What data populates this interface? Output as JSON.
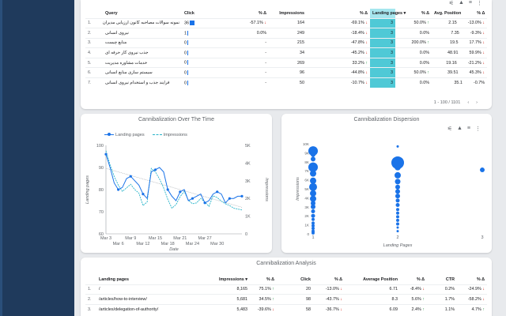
{
  "top_table": {
    "headers": [
      "Query",
      "Click",
      "% Δ",
      "Impressions",
      "% Δ",
      "Landing pages",
      "% Δ",
      "Avg. Position",
      "% Δ"
    ],
    "sort_icon": "triangle-down-icon",
    "rows": [
      {
        "n": "1.",
        "q": "نمونه سوالات مصاحبه کانون ارزیابی مدیران",
        "c": "36",
        "cd": "-57.1%",
        "cdd": "dn",
        "i": "164",
        "id": "-69.1%",
        "idd": "dn",
        "lp": "3",
        "lpd": "50.0%",
        "lpdd": "up",
        "ap": "2.15",
        "apd": "-13.0%",
        "apdd": "dn"
      },
      {
        "n": "2.",
        "q": "نیروی انسانی",
        "c": "1",
        "cd": "0.0%",
        "cdd": "",
        "i": "249",
        "id": "-18.4%",
        "idd": "dn",
        "lp": "3",
        "lpd": "0.0%",
        "lpdd": "",
        "ap": "7.35",
        "apd": "-9.3%",
        "apdd": "dn"
      },
      {
        "n": "3.",
        "q": "منابع چیست",
        "c": "0",
        "cd": "-",
        "cdd": "",
        "i": "215",
        "id": "-47.8%",
        "idd": "dn",
        "lp": "3",
        "lpd": "200.0%",
        "lpdd": "up",
        "ap": "19.5",
        "apd": "17.7%",
        "apdd": "dn"
      },
      {
        "n": "4.",
        "q": "جذب نیروی کار حرفه ای",
        "c": "0",
        "cd": "-",
        "cdd": "",
        "i": "34",
        "id": "-45.2%",
        "idd": "dn",
        "lp": "3",
        "lpd": "0.0%",
        "lpdd": "",
        "ap": "48.91",
        "apd": "59.9%",
        "apdd": "dn"
      },
      {
        "n": "5.",
        "q": "خدمات مشاوره مدیریت",
        "c": "0",
        "cd": "-",
        "cdd": "",
        "i": "269",
        "id": "33.2%",
        "idd": "up",
        "lp": "3",
        "lpd": "0.0%",
        "lpdd": "",
        "ap": "19.16",
        "apd": "-21.2%",
        "apdd": "dn"
      },
      {
        "n": "6.",
        "q": "سیستم سازی منابع انسانی",
        "c": "0",
        "cd": "-",
        "cdd": "",
        "i": "96",
        "id": "-44.8%",
        "idd": "dn",
        "lp": "3",
        "lpd": "50.0%",
        "lpdd": "up",
        "ap": "39.51",
        "apd": "45.3%",
        "apdd": "dn"
      },
      {
        "n": "7.",
        "q": "فرایند جذب و استخدام نیروی انسانی",
        "c": "0",
        "cd": "-",
        "cdd": "",
        "i": "50",
        "id": "-10.7%",
        "idd": "dn",
        "lp": "3",
        "lpd": "0.0%",
        "lpdd": "",
        "ap": "35.1",
        "apd": "-0.7%",
        "apdd": ""
      }
    ],
    "pager": "1 - 100 / 1101"
  },
  "chart1": {
    "title": "Cannibalization Over The Time",
    "legend": [
      "Landing pages",
      "Impressions"
    ]
  },
  "chart2": {
    "title": "Cannibalization Dispersion"
  },
  "chart_data": [
    {
      "type": "line",
      "title": "Cannibalization Over The Time",
      "xlabel": "Date",
      "ylabel": "Landing pages",
      "y2label": "Impressions",
      "x_ticks_top": [
        "Mar 3",
        "Mar 9",
        "Mar 15",
        "Mar 21",
        "Mar 27"
      ],
      "x_ticks_bottom": [
        "Mar 6",
        "Mar 12",
        "Mar 18",
        "Mar 24",
        "Mar 30"
      ],
      "ylim": [
        60,
        100
      ],
      "y_ticks": [
        60,
        70,
        80,
        90,
        100
      ],
      "y2lim": [
        0,
        5000
      ],
      "y2_ticks": [
        "0",
        "1K",
        "2K",
        "3K",
        "4K",
        "5K"
      ],
      "series": [
        {
          "name": "Landing pages",
          "axis": "left",
          "values": [
            96,
            90,
            83,
            80,
            81,
            85,
            86,
            84,
            82,
            78,
            76,
            88,
            89,
            90,
            88,
            80,
            77,
            75,
            79,
            80,
            75,
            76,
            77,
            78,
            74,
            75,
            78,
            79,
            78,
            74,
            76,
            76,
            77,
            77
          ]
        },
        {
          "name": "Impressions",
          "axis": "right",
          "values": [
            4700,
            3900,
            3250,
            2750,
            2400,
            2600,
            2800,
            2500,
            2300,
            1600,
            1800,
            3700,
            3500,
            3100,
            2600,
            1950,
            1450,
            1650,
            2100,
            2400,
            1900,
            1700,
            1750,
            2000,
            1800,
            1550,
            2150,
            2050,
            1850,
            1700,
            1600,
            1450,
            1400,
            1350
          ]
        }
      ]
    },
    {
      "type": "scatter",
      "title": "Cannibalization Dispersion",
      "xlabel": "Landing Pages",
      "ylabel": "Impressions",
      "x_ticks": [
        "1",
        "2",
        "3"
      ],
      "y_ticks": [
        "0",
        "1K",
        "2K",
        "3K",
        "4K",
        "5K",
        "6K",
        "7K",
        "8K",
        "9K",
        "10K"
      ],
      "ylim": [
        0,
        10000
      ],
      "points": [
        {
          "x": 1,
          "y": 9200,
          "s": 6
        },
        {
          "x": 1,
          "y": 8800,
          "s": 3
        },
        {
          "x": 1,
          "y": 8300,
          "s": 3
        },
        {
          "x": 1,
          "y": 7400,
          "s": 6
        },
        {
          "x": 1,
          "y": 6700,
          "s": 4
        },
        {
          "x": 1,
          "y": 5900,
          "s": 4
        },
        {
          "x": 1,
          "y": 5200,
          "s": 5
        },
        {
          "x": 1,
          "y": 4500,
          "s": 4
        },
        {
          "x": 1,
          "y": 3900,
          "s": 4
        },
        {
          "x": 1,
          "y": 3400,
          "s": 3
        },
        {
          "x": 1,
          "y": 3000,
          "s": 3
        },
        {
          "x": 1,
          "y": 2500,
          "s": 2.5
        },
        {
          "x": 1,
          "y": 2000,
          "s": 2.5
        },
        {
          "x": 1,
          "y": 1600,
          "s": 2
        },
        {
          "x": 1,
          "y": 1200,
          "s": 2
        },
        {
          "x": 1,
          "y": 900,
          "s": 2
        },
        {
          "x": 1,
          "y": 600,
          "s": 2
        },
        {
          "x": 1,
          "y": 300,
          "s": 2
        },
        {
          "x": 1,
          "y": 100,
          "s": 2
        },
        {
          "x": 2,
          "y": 9700,
          "s": 1.5
        },
        {
          "x": 2,
          "y": 7900,
          "s": 8
        },
        {
          "x": 2,
          "y": 7400,
          "s": 4
        },
        {
          "x": 2,
          "y": 6500,
          "s": 4
        },
        {
          "x": 2,
          "y": 5800,
          "s": 3.5
        },
        {
          "x": 2,
          "y": 5200,
          "s": 3
        },
        {
          "x": 2,
          "y": 4700,
          "s": 3
        },
        {
          "x": 2,
          "y": 4200,
          "s": 3
        },
        {
          "x": 2,
          "y": 3700,
          "s": 2.5
        },
        {
          "x": 2,
          "y": 3200,
          "s": 2.5
        },
        {
          "x": 2,
          "y": 2700,
          "s": 2
        },
        {
          "x": 2,
          "y": 2300,
          "s": 2
        },
        {
          "x": 2,
          "y": 1900,
          "s": 2
        },
        {
          "x": 2,
          "y": 1500,
          "s": 2
        },
        {
          "x": 2,
          "y": 1100,
          "s": 2
        },
        {
          "x": 2,
          "y": 700,
          "s": 1.5
        },
        {
          "x": 2,
          "y": 300,
          "s": 1.5
        },
        {
          "x": 3,
          "y": 7100,
          "s": 3
        }
      ]
    }
  ],
  "bottom_table": {
    "title": "Cannibalization Analysis",
    "headers": [
      "Landing pages",
      "Impressions",
      "% Δ",
      "Click",
      "% Δ",
      "Average Position",
      "% Δ",
      "CTR",
      "% Δ"
    ],
    "rows": [
      {
        "n": "1.",
        "p": "/",
        "i": "8,165",
        "id": "75.1%",
        "idd": "up",
        "c": "20",
        "cd": "-13.0%",
        "cdd": "dn",
        "ap": "6.71",
        "apd": "-8.4%",
        "apdd": "dn",
        "ctr": "0.2%",
        "ctrd": "-24.9%",
        "ctrdd": "dn"
      },
      {
        "n": "2.",
        "p": "/articles/how-to-interview/",
        "i": "5,681",
        "id": "34.5%",
        "idd": "up",
        "c": "98",
        "cd": "-43.7%",
        "cdd": "dn",
        "ap": "8.3",
        "apd": "5.6%",
        "apdd": "up",
        "ctr": "1.7%",
        "ctrd": "-58.2%",
        "ctrdd": "dn"
      },
      {
        "n": "3.",
        "p": "/articles/delegation-of-authority/",
        "i": "5,483",
        "id": "-39.6%",
        "idd": "dn",
        "c": "58",
        "cd": "-36.7%",
        "cdd": "dn",
        "ap": "6.09",
        "apd": "2.4%",
        "apdd": "up",
        "ctr": "1.1%",
        "ctrd": "4.7%",
        "ctrdd": "up"
      }
    ]
  },
  "icons": {
    "filter_icon": "sliders-icon",
    "warning_icon": "warning-icon",
    "sort_icon": "filter-icon",
    "more_icon": "more-vert-icon"
  }
}
